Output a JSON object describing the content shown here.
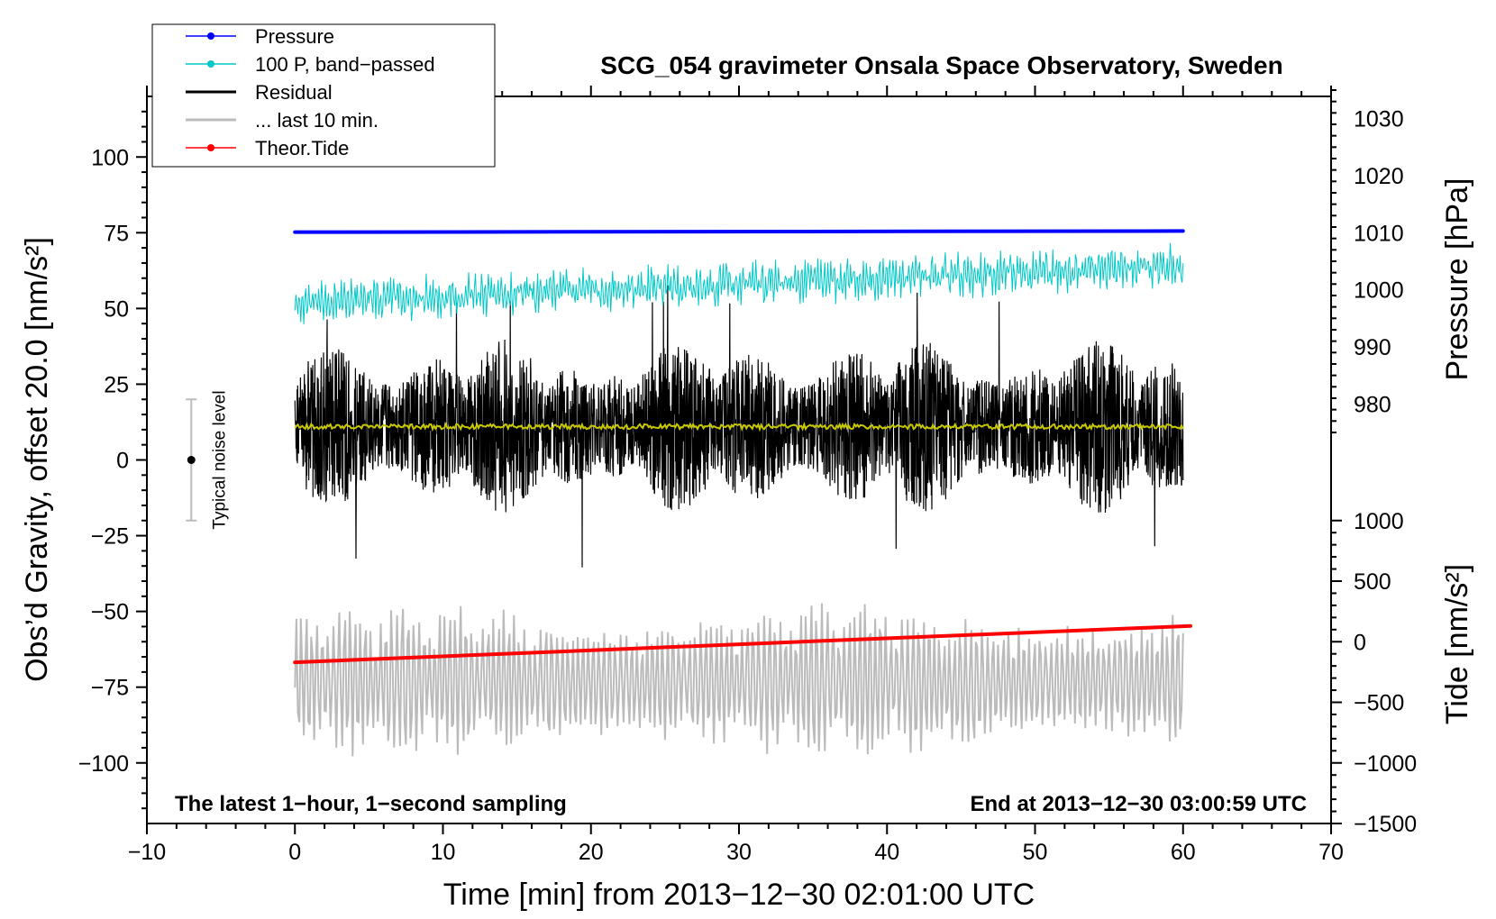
{
  "chart_data": {
    "type": "line",
    "title": "SCG_054 gravimeter Onsala Space Observatory, Sweden",
    "xlabel": "Time [min] from 2013−12−30 02:01:00 UTC",
    "ylabel_left": "Obs’d Gravity, offset 20.0 [nm/s²]",
    "ylabel_right_top": "Pressure [hPa]",
    "ylabel_right_bottom": "Tide [nm/s²]",
    "xlim": [
      -10,
      70
    ],
    "ylim_left": [
      -120,
      120
    ],
    "x_ticks": [
      -10,
      0,
      10,
      20,
      30,
      40,
      50,
      60,
      70
    ],
    "x_tick_labels": [
      "−10",
      "0",
      "10",
      "20",
      "30",
      "40",
      "50",
      "60",
      "70"
    ],
    "y_ticks_left": [
      100,
      75,
      50,
      25,
      0,
      -25,
      -50,
      -75,
      -100
    ],
    "y_tick_labels_left": [
      "100",
      "75",
      "50",
      "25",
      "0",
      "−25",
      "−50",
      "−75",
      "−100"
    ],
    "pressure_axis": {
      "ticks": [
        1030,
        1020,
        1010,
        1000,
        990,
        980
      ],
      "tick_labels": [
        "1030",
        "1020",
        "1010",
        "1000",
        "990",
        "980"
      ],
      "map": {
        "value_a": 1010,
        "gravity_a": 75,
        "value_b": 980,
        "gravity_b": 18.5
      }
    },
    "tide_axis": {
      "ticks": [
        1000,
        500,
        0,
        -500,
        -1000,
        -1500
      ],
      "tick_labels": [
        "1000",
        "500",
        "0",
        "−500",
        "−1000",
        "−1500"
      ],
      "map": {
        "value_a": 0,
        "gravity_a": -60,
        "value_b": -1500,
        "gravity_b": -120
      }
    },
    "legend": [
      {
        "label": "Pressure",
        "color": "#0000ff",
        "marker": true
      },
      {
        "label": "100 P, band−passed",
        "color": "#00c8c8",
        "marker": true
      },
      {
        "label": "Residual",
        "color": "#000000",
        "marker": false
      },
      {
        "label": "... last 10 min.",
        "color": "#bbbbbb",
        "marker": false
      },
      {
        "label": "Theor.Tide",
        "color": "#ff0000",
        "marker": true
      }
    ],
    "annotations": {
      "left": "The latest 1−hour, 1−second sampling",
      "right": "End at 2013−12−30 03:00:59 UTC"
    },
    "noise_level": {
      "label": "Typical noise level",
      "x": -7,
      "center": 0,
      "half_range": 20
    },
    "series": [
      {
        "name": "Pressure",
        "unit": "hPa",
        "color": "#0000ff",
        "x_start": 0,
        "x_end": 60,
        "start": 1010.1,
        "end": 1010.3
      },
      {
        "name": "100 P, band−passed",
        "unit": "nm/s²",
        "color": "#00c8c8",
        "x_start": 0,
        "x_end": 60,
        "mean_start": 52,
        "mean_end": 64,
        "amplitude": 7
      },
      {
        "name": "Residual",
        "unit": "nm/s²",
        "color": "#000000",
        "x_start": 0,
        "x_end": 60,
        "mean": 11,
        "typical_min": -15,
        "typical_max": 40,
        "peak_max": 60,
        "peak_min": -38
      },
      {
        "name": "Residual running mean",
        "unit": "nm/s²",
        "color": "#c8c800",
        "x_start": 0,
        "x_end": 60,
        "mean": 11
      },
      {
        "name": "... last 10 min.",
        "unit": "nm/s²",
        "color": "#bbbbbb",
        "x_start": 0,
        "x_end": 60,
        "mean": -73,
        "amplitude": 25
      },
      {
        "name": "Theor.Tide",
        "unit": "nm/s²",
        "color": "#ff0000",
        "x_start": 0,
        "x_end": 60.5,
        "start": -170,
        "end": 130
      }
    ]
  }
}
